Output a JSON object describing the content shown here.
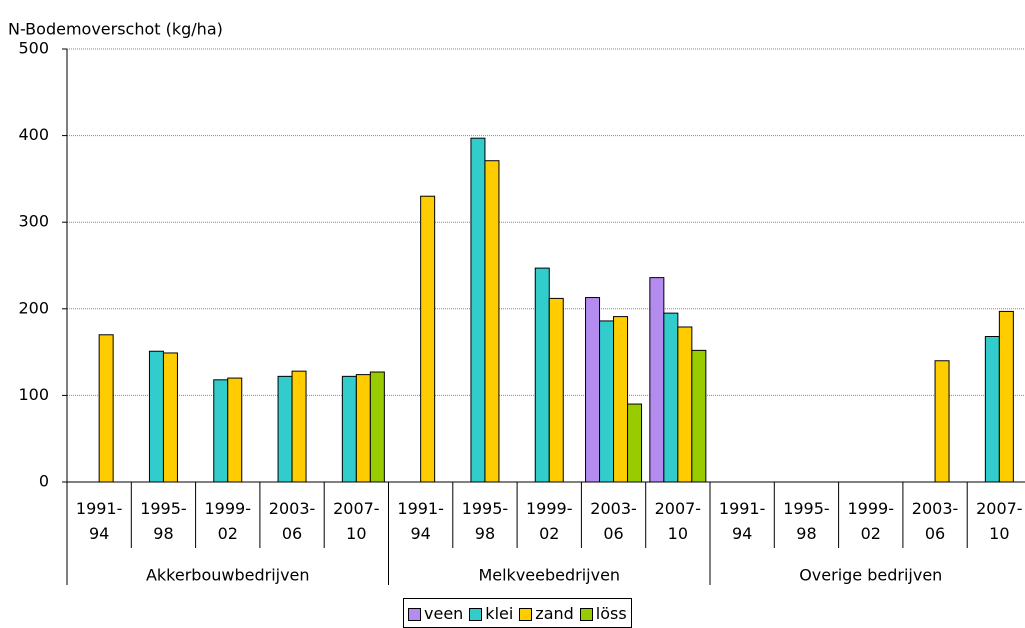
{
  "chart_data": {
    "type": "bar",
    "y_axis_label": "N-Bodemoverschot (kg/ha)",
    "groups": [
      "Akkerbouwbedrijven",
      "Melkveebedrijven",
      "Overige bedrijven"
    ],
    "categories": [
      "1991-94",
      "1995-98",
      "1999-02",
      "2003-06",
      "2007-10",
      "1991-94",
      "1995-98",
      "1999-02",
      "2003-06",
      "2007-10",
      "1991-94",
      "1995-98",
      "1999-02",
      "2003-06",
      "2007-10"
    ],
    "series": [
      {
        "name": "veen",
        "color": "#b48cf0",
        "values": [
          null,
          null,
          null,
          null,
          null,
          null,
          null,
          null,
          213,
          236,
          null,
          null,
          null,
          null,
          null
        ]
      },
      {
        "name": "klei",
        "color": "#33cccc",
        "values": [
          null,
          151,
          118,
          122,
          122,
          null,
          397,
          247,
          186,
          195,
          null,
          null,
          null,
          null,
          168
        ]
      },
      {
        "name": "zand",
        "color": "#ffcc00",
        "values": [
          170,
          149,
          120,
          128,
          124,
          330,
          371,
          212,
          191,
          179,
          null,
          null,
          null,
          140,
          197
        ]
      },
      {
        "name": "löss",
        "color": "#99cc00",
        "values": [
          null,
          null,
          null,
          null,
          127,
          null,
          null,
          null,
          90,
          152,
          null,
          null,
          null,
          null,
          null
        ]
      }
    ],
    "ylim": [
      0,
      500
    ],
    "yticks": [
      0,
      100,
      200,
      300,
      400,
      500
    ],
    "grid": true,
    "legend": "bottom"
  }
}
